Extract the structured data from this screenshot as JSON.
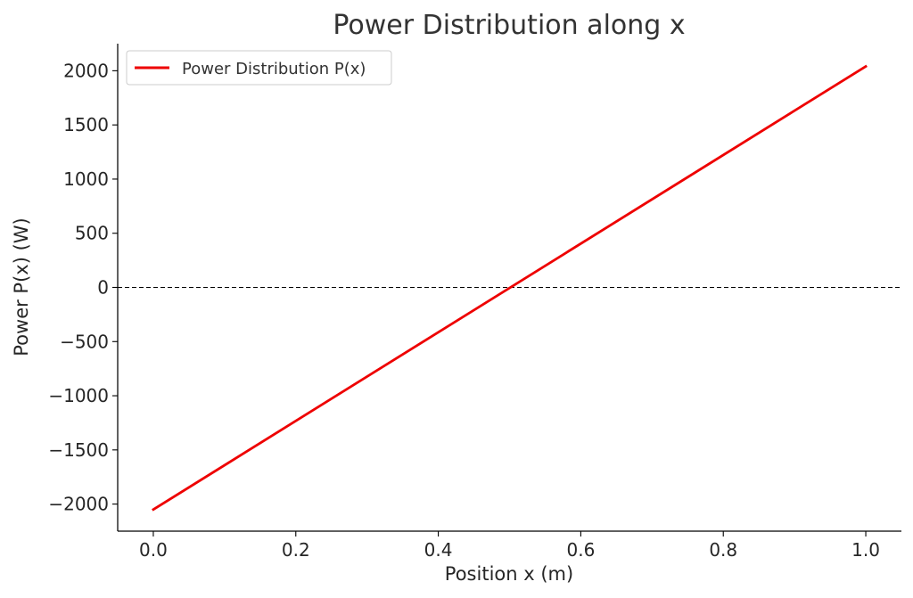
{
  "chart_data": {
    "type": "line",
    "title": "Power Distribution along x",
    "xlabel": "Position x (m)",
    "ylabel": "Power P(x) (W)",
    "xlim": [
      -0.05,
      1.05
    ],
    "ylim": [
      -2250,
      2250
    ],
    "x_ticks": [
      0.0,
      0.2,
      0.4,
      0.6,
      0.8,
      1.0
    ],
    "x_tick_labels": [
      "0.0",
      "0.2",
      "0.4",
      "0.6",
      "0.8",
      "1.0"
    ],
    "y_ticks": [
      -2000,
      -1500,
      -1000,
      -500,
      0,
      500,
      1000,
      1500,
      2000
    ],
    "y_tick_labels": [
      "−2000",
      "−1500",
      "−1000",
      "−500",
      "0",
      "500",
      "1000",
      "1500",
      "2000"
    ],
    "grid": false,
    "legend_position": "top-left",
    "series": [
      {
        "name": "Power Distribution P(x)",
        "color": "#ee0000",
        "x": [
          0.0,
          1.0
        ],
        "y": [
          -2050,
          2040
        ]
      }
    ],
    "reference_lines": [
      {
        "orientation": "horizontal",
        "y": 0,
        "style": "dashed",
        "color": "#000000"
      }
    ]
  }
}
